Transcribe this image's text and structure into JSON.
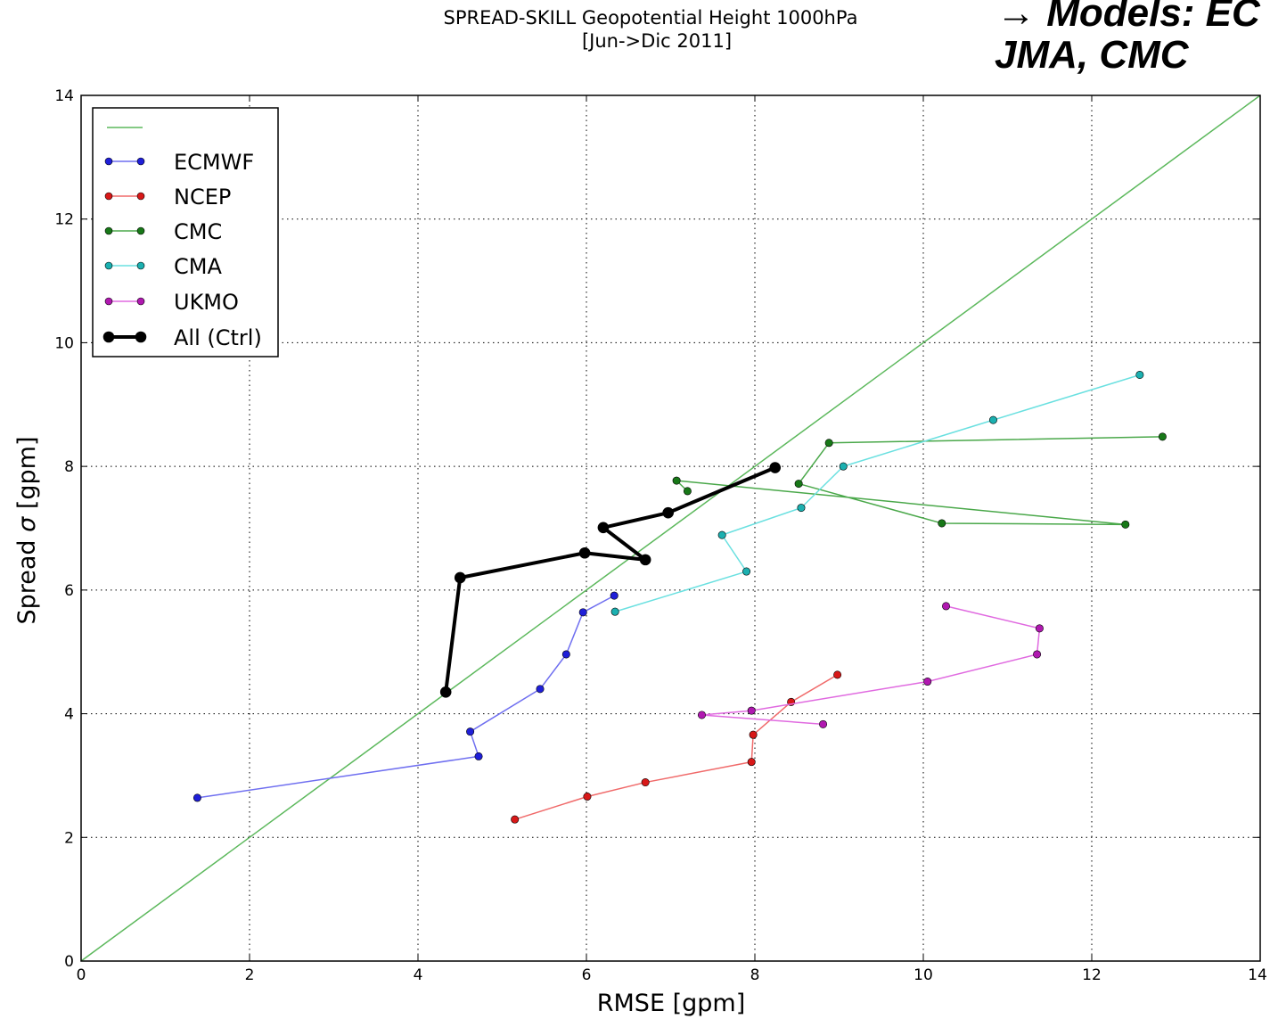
{
  "corner_note": {
    "line1": "→ Models: EC",
    "line2": "JMA, CMC"
  },
  "chart_data": {
    "type": "line",
    "title": "SPREAD-SKILL Geopotential Height 1000hPa",
    "subtitle": "[Jun->Dic 2011]",
    "xlabel": "RMSE [gpm]",
    "ylabel_prefix": "Spread ",
    "ylabel_symbol": "σ",
    "ylabel_suffix": " [gpm]",
    "xlim": [
      0,
      14
    ],
    "ylim": [
      0,
      14
    ],
    "xticks": [
      0,
      2,
      4,
      6,
      8,
      10,
      12,
      14
    ],
    "yticks": [
      0,
      2,
      4,
      6,
      8,
      10,
      12,
      14
    ],
    "grid": true,
    "legend_position": "top-left",
    "reference_line": {
      "x": [
        0,
        14
      ],
      "y": [
        0,
        14
      ],
      "color": "#5cb85c"
    },
    "series": [
      {
        "name": "ECMWF",
        "color": "#1f1fd8",
        "line_color": "#6f6ff0",
        "x": [
          1.38,
          4.72,
          4.62,
          5.45,
          5.76,
          5.96,
          6.33
        ],
        "y": [
          2.64,
          3.31,
          3.71,
          4.4,
          4.96,
          5.64,
          5.91
        ]
      },
      {
        "name": "NCEP",
        "color": "#d81818",
        "line_color": "#f06a6a",
        "x": [
          5.15,
          6.01,
          6.7,
          7.96,
          7.98,
          8.43,
          8.98
        ],
        "y": [
          2.29,
          2.66,
          2.89,
          3.22,
          3.66,
          4.19,
          4.63
        ]
      },
      {
        "name": "CMC",
        "color": "#187818",
        "line_color": "#4aa84a",
        "x": [
          7.2,
          7.07,
          12.4,
          10.22,
          8.52,
          8.88,
          12.84
        ],
        "y": [
          7.6,
          7.77,
          7.06,
          7.08,
          7.72,
          8.38,
          8.48
        ]
      },
      {
        "name": "CMA",
        "color": "#1bb0b0",
        "line_color": "#6ae0e0",
        "x": [
          6.34,
          7.9,
          7.61,
          8.55,
          9.05,
          10.83,
          12.57
        ],
        "y": [
          5.65,
          6.3,
          6.89,
          7.33,
          8.0,
          8.75,
          9.48
        ]
      },
      {
        "name": "UKMO",
        "color": "#b018b0",
        "line_color": "#e06ae0",
        "x": [
          8.81,
          7.37,
          7.96,
          10.05,
          11.35,
          11.38,
          10.27
        ],
        "y": [
          3.83,
          3.98,
          4.05,
          4.52,
          4.96,
          5.38,
          5.74
        ]
      },
      {
        "name": "All (Ctrl)",
        "color": "#000000",
        "line_color": "#000000",
        "bold": true,
        "x": [
          4.33,
          4.5,
          5.98,
          6.7,
          6.2,
          6.97,
          8.24
        ],
        "y": [
          4.35,
          6.2,
          6.6,
          6.49,
          7.01,
          7.25,
          7.98
        ]
      }
    ]
  }
}
